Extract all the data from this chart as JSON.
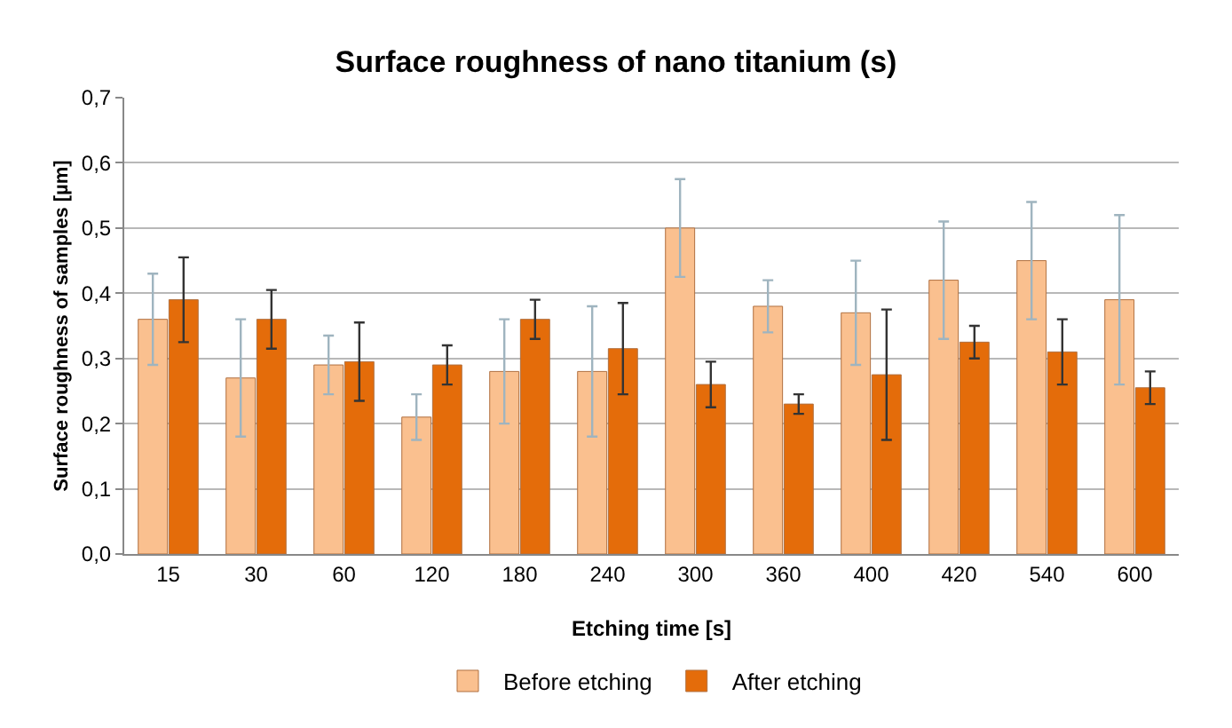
{
  "chart_data": {
    "type": "bar",
    "title": "Surface roughness of nano titanium (s)",
    "xlabel": "Etching time [s]",
    "ylabel": "Surface roughness of samples [µm]",
    "categories": [
      "15",
      "30",
      "60",
      "120",
      "180",
      "240",
      "300",
      "360",
      "400",
      "420",
      "540",
      "600"
    ],
    "series": [
      {
        "name": "Before etching",
        "color": "#fac08f",
        "values": [
          0.36,
          0.27,
          0.29,
          0.21,
          0.28,
          0.28,
          0.5,
          0.38,
          0.37,
          0.42,
          0.45,
          0.39
        ],
        "errors": [
          0.07,
          0.09,
          0.045,
          0.035,
          0.08,
          0.1,
          0.075,
          0.04,
          0.08,
          0.09,
          0.09,
          0.13
        ]
      },
      {
        "name": "After etching",
        "color": "#e46c0a",
        "values": [
          0.39,
          0.36,
          0.295,
          0.29,
          0.36,
          0.315,
          0.26,
          0.23,
          0.275,
          0.325,
          0.31,
          0.255
        ],
        "errors": [
          0.065,
          0.045,
          0.06,
          0.03,
          0.03,
          0.07,
          0.035,
          0.015,
          0.1,
          0.025,
          0.05,
          0.025
        ]
      }
    ],
    "ylim": [
      0,
      0.7
    ],
    "yticks": [
      {
        "value": 0,
        "label": "0,0"
      },
      {
        "value": 0.1,
        "label": "0,1"
      },
      {
        "value": 0.2,
        "label": "0,2"
      },
      {
        "value": 0.3,
        "label": "0,3"
      },
      {
        "value": 0.4,
        "label": "0,4"
      },
      {
        "value": 0.5,
        "label": "0,5"
      },
      {
        "value": 0.6,
        "label": "0,6"
      },
      {
        "value": 0.7,
        "label": "0,7"
      }
    ],
    "grid": "y",
    "legend": "bottom"
  }
}
